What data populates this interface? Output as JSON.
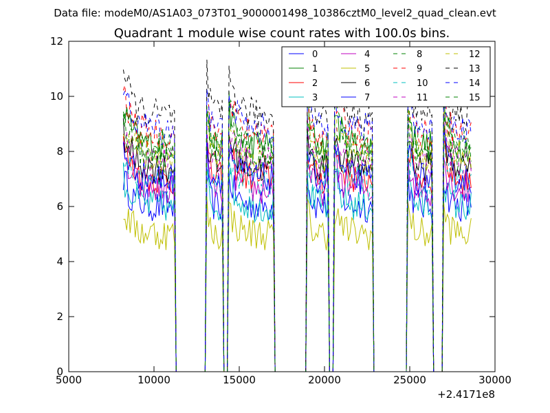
{
  "figure": {
    "file_label": "Data file: modeM0/AS1A03_073T01_9000001498_10386cztM0_level2_quad_clean.evt",
    "title": "Quadrant 1 module wise count rates with 100.0s bins.",
    "x_offset_label": "+2.4171e8"
  },
  "chart_data": {
    "type": "line",
    "title": "Quadrant 1 module wise count rates with 100.0s bins.",
    "xlabel": "",
    "ylabel": "",
    "xlim": [
      5000,
      30000
    ],
    "ylim": [
      0,
      12
    ],
    "x_offset": 241710000,
    "xticks": [
      5000,
      10000,
      15000,
      20000,
      25000,
      30000
    ],
    "yticks": [
      0,
      2,
      4,
      6,
      8,
      10,
      12
    ],
    "grid": false,
    "legend_position": "top-right",
    "segments": [
      {
        "start": 8200,
        "end": 11200
      },
      {
        "start": 13100,
        "end": 14000
      },
      {
        "start": 14400,
        "end": 17000
      },
      {
        "start": 19000,
        "end": 20200
      },
      {
        "start": 20600,
        "end": 22800
      },
      {
        "start": 24900,
        "end": 26300
      },
      {
        "start": 27000,
        "end": 28600
      }
    ],
    "series": [
      {
        "name": "0",
        "color": "#0000ff",
        "dash": "solid",
        "level": 6.0
      },
      {
        "name": "1",
        "color": "#008000",
        "dash": "solid",
        "level": 8.2
      },
      {
        "name": "2",
        "color": "#ff0000",
        "dash": "solid",
        "level": 7.0
      },
      {
        "name": "3",
        "color": "#00bfbf",
        "dash": "solid",
        "level": 6.0
      },
      {
        "name": "4",
        "color": "#bf00bf",
        "dash": "solid",
        "level": 6.6
      },
      {
        "name": "5",
        "color": "#bfbf00",
        "dash": "solid",
        "level": 5.0
      },
      {
        "name": "6",
        "color": "#000000",
        "dash": "solid",
        "level": 7.4
      },
      {
        "name": "7",
        "color": "#0000ff",
        "dash": "solid",
        "level": 7.0
      },
      {
        "name": "8",
        "color": "#008000",
        "dash": "dashed",
        "level": 8.2
      },
      {
        "name": "9",
        "color": "#ff0000",
        "dash": "dashed",
        "level": 8.6
      },
      {
        "name": "10",
        "color": "#00bfbf",
        "dash": "dashed",
        "level": 6.8
      },
      {
        "name": "11",
        "color": "#bf00bf",
        "dash": "dashed",
        "level": 7.6
      },
      {
        "name": "12",
        "color": "#bfbf00",
        "dash": "dashed",
        "level": 7.8
      },
      {
        "name": "13",
        "color": "#000000",
        "dash": "dashed",
        "level": 9.3
      },
      {
        "name": "14",
        "color": "#0000ff",
        "dash": "dashed",
        "level": 8.8
      },
      {
        "name": "15",
        "color": "#008000",
        "dash": "dashed",
        "level": 7.8
      }
    ]
  }
}
